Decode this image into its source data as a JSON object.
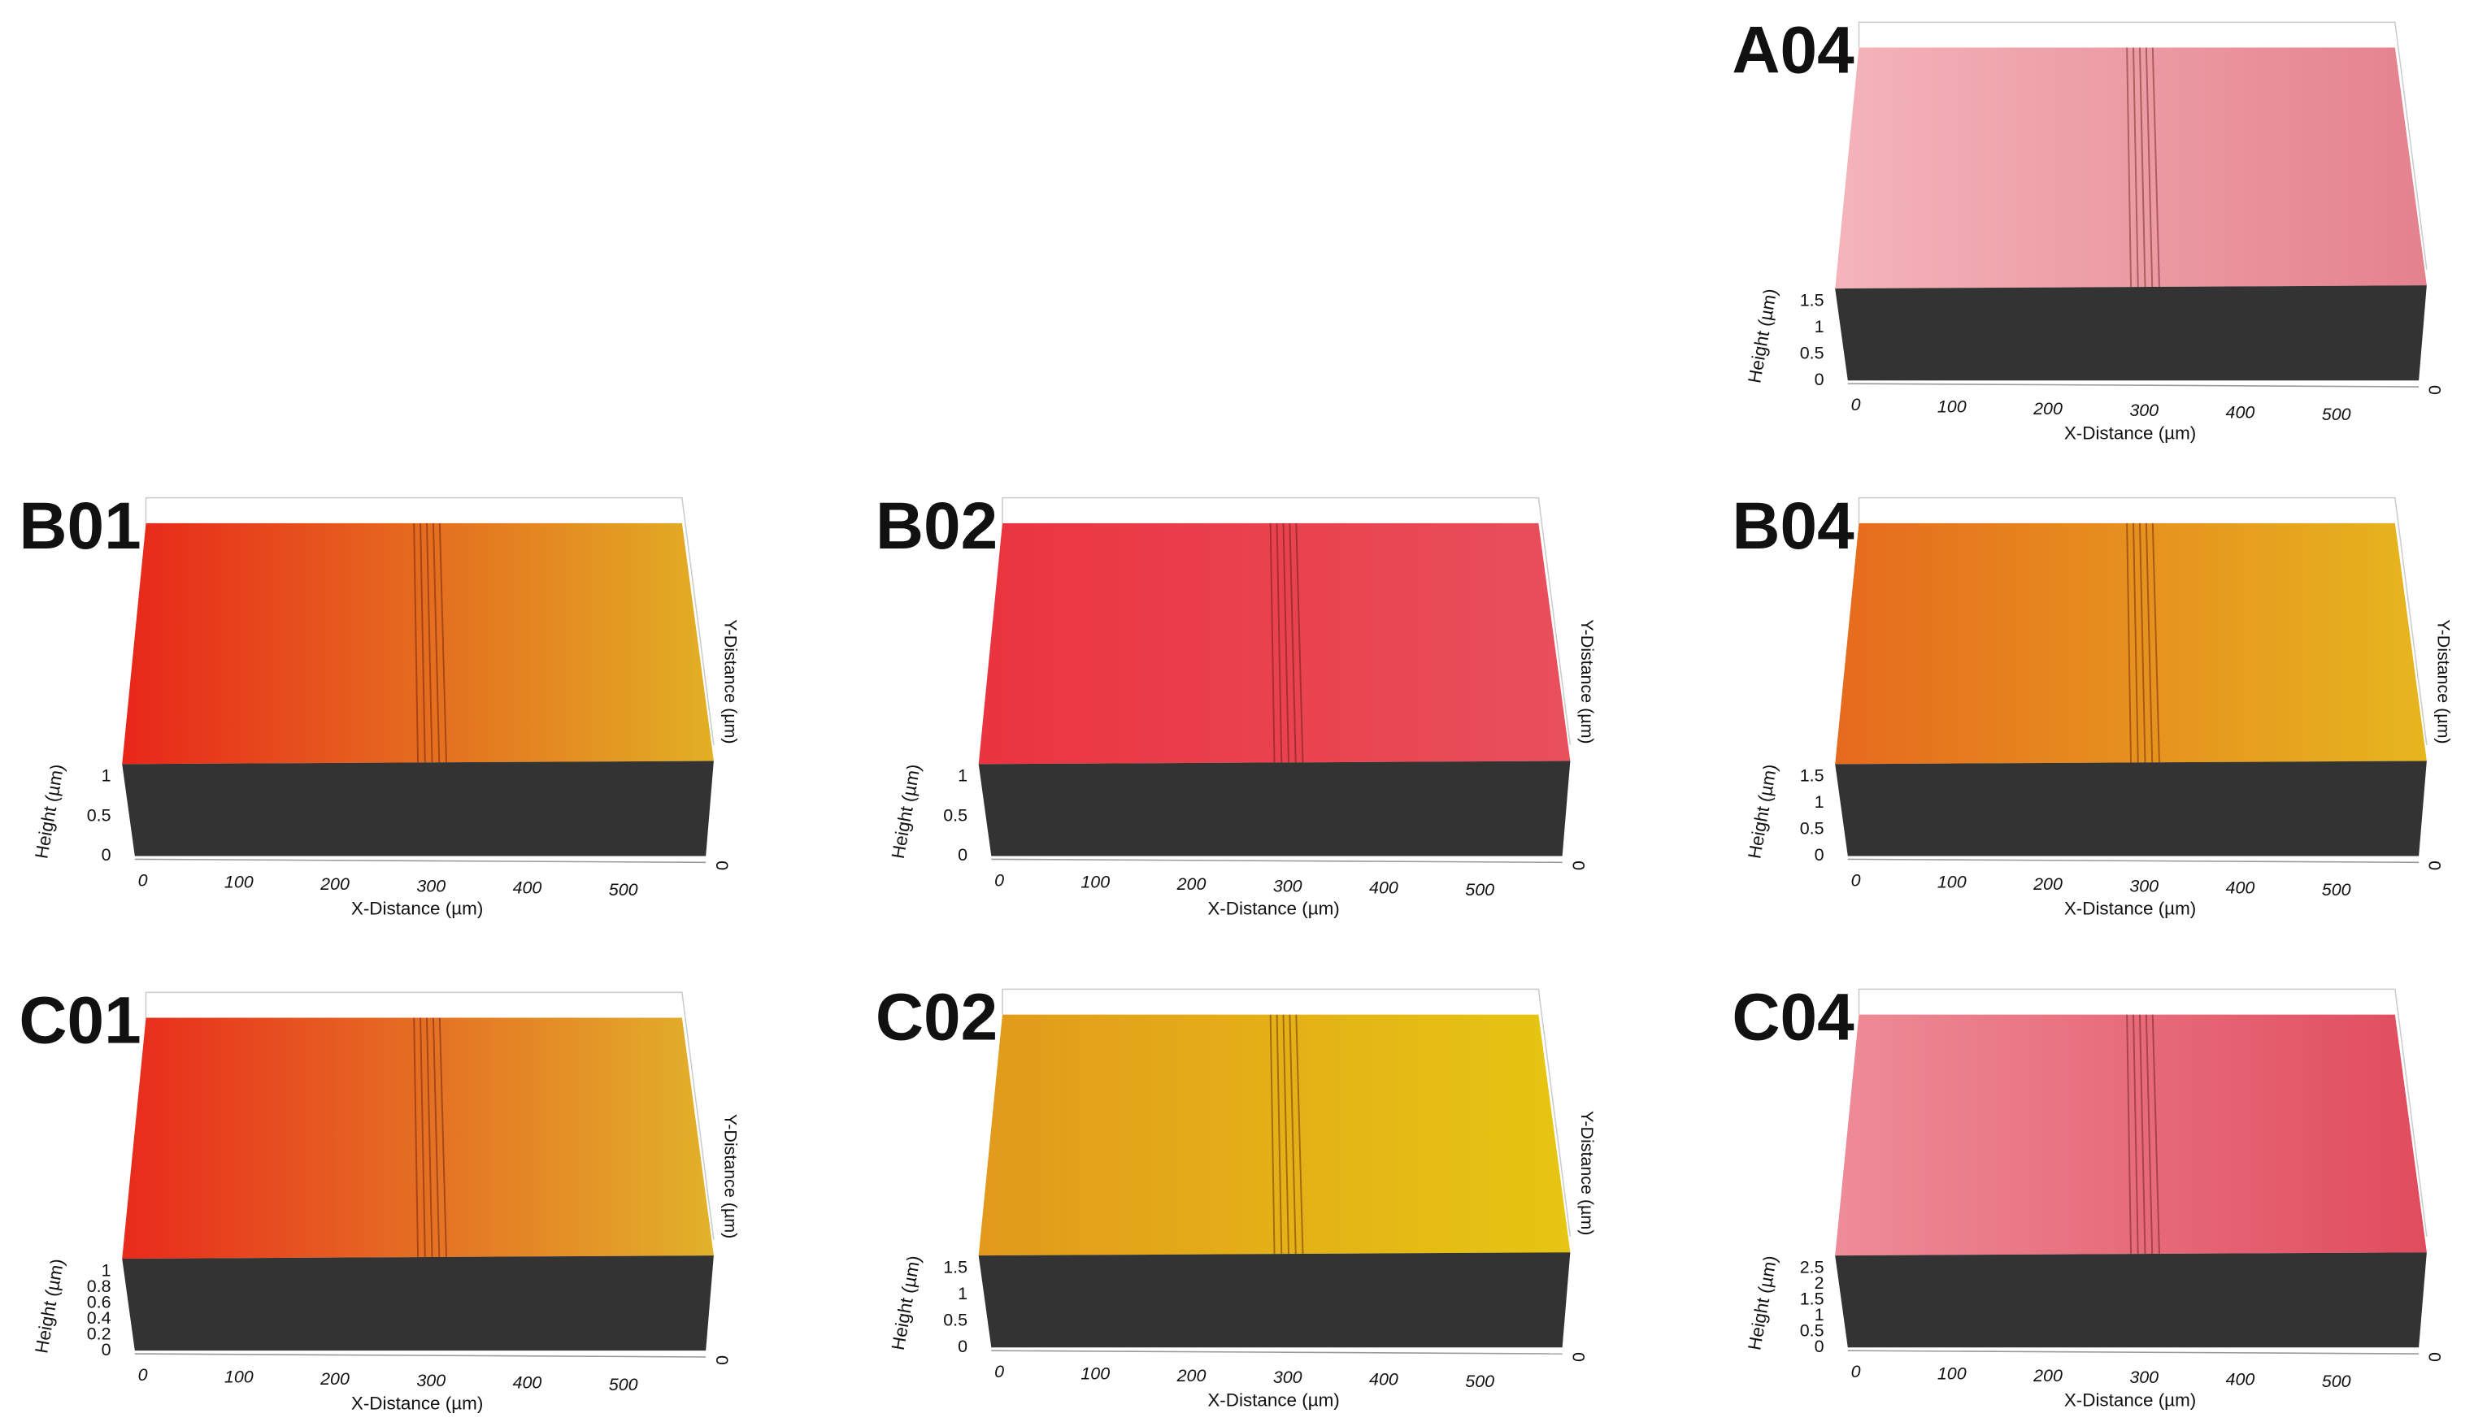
{
  "panels": [
    {
      "label": "A04",
      "z_label": "Height (µm)",
      "z_ticks": [
        0,
        0.5,
        1,
        1.5
      ],
      "x_label": "X-Distance (µm)",
      "x_ticks": [
        0,
        100,
        200,
        300,
        400,
        500
      ],
      "y_ticks": [
        0
      ],
      "colors": [
        "#f4b4ba",
        "#e4828e"
      ]
    },
    {
      "label": "B01",
      "z_label": "Height (µm)",
      "z_ticks": [
        0,
        0.5,
        1
      ],
      "x_label": "X-Distance (µm)",
      "x_ticks": [
        0,
        100,
        200,
        300,
        400,
        500
      ],
      "y_label": "Y-Distance (µm)",
      "y_ticks": [
        0
      ],
      "colors": [
        "#e8261a",
        "#e2b024"
      ]
    },
    {
      "label": "B02",
      "z_label": "Height (µm)",
      "z_ticks": [
        0,
        0.5,
        1
      ],
      "x_label": "X-Distance (µm)",
      "x_ticks": [
        0,
        100,
        200,
        300,
        400,
        500
      ],
      "y_label": "Y-Distance (µm)",
      "y_ticks": [
        0
      ],
      "colors": [
        "#ea3440",
        "#e8505c"
      ]
    },
    {
      "label": "B04",
      "z_label": "Height (µm)",
      "z_ticks": [
        0,
        0.5,
        1,
        1.5
      ],
      "x_label": "X-Distance (µm)",
      "x_ticks": [
        0,
        100,
        200,
        300,
        400,
        500
      ],
      "y_label": "Y-Distance (µm)",
      "y_ticks": [
        0
      ],
      "colors": [
        "#e66a1e",
        "#e6b61e"
      ]
    },
    {
      "label": "C01",
      "z_label": "Height (µm)",
      "z_ticks": [
        0,
        0.2,
        0.4,
        0.6,
        0.8,
        1
      ],
      "x_label": "X-Distance (µm)",
      "x_ticks": [
        0,
        100,
        200,
        300,
        400,
        500
      ],
      "y_label": "Y-Distance (µm)",
      "y_ticks": [
        0
      ],
      "colors": [
        "#e82a1c",
        "#e2b22a"
      ]
    },
    {
      "label": "C02",
      "z_label": "Height (µm)",
      "z_ticks": [
        0,
        0.5,
        1,
        1.5
      ],
      "x_label": "X-Distance (µm)",
      "x_ticks": [
        0,
        100,
        200,
        300,
        400,
        500
      ],
      "y_label": "Y-Distance (µm)",
      "y_ticks": [
        0
      ],
      "colors": [
        "#e29a1c",
        "#e6c612"
      ]
    },
    {
      "label": "C04",
      "z_label": "Height (µm)",
      "z_ticks": [
        0,
        0.5,
        1,
        1.5,
        2,
        2.5
      ],
      "x_label": "X-Distance (µm)",
      "x_ticks": [
        0,
        100,
        200,
        300,
        400,
        500
      ],
      "y_ticks": [
        0
      ],
      "colors": [
        "#ee8c98",
        "#e04c5e"
      ]
    }
  ]
}
